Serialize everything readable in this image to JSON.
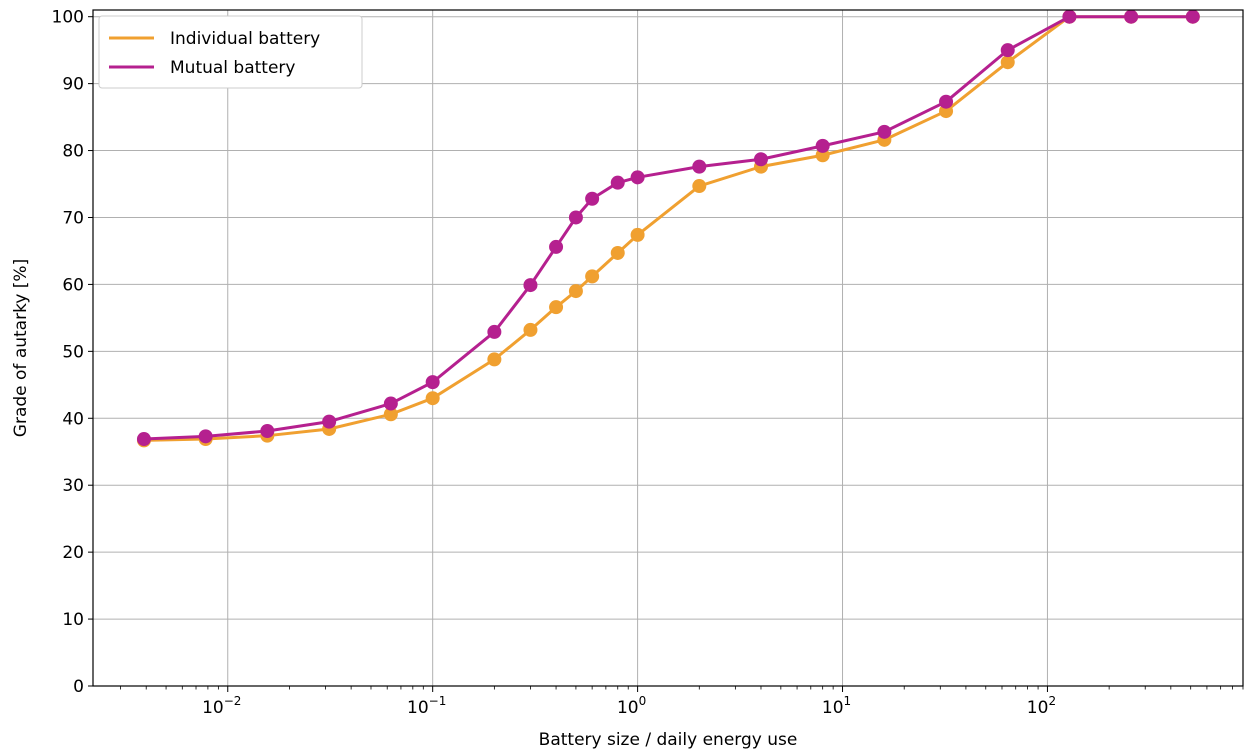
{
  "chart_data": {
    "type": "line",
    "xscale": "log",
    "xlim": [
      0.0022,
      900
    ],
    "ylim": [
      0,
      101
    ],
    "xlabel": "Battery size / daily energy use",
    "ylabel": "Grade of autarky [%]",
    "grid": true,
    "legend_position": "top-left",
    "x_ticks": [
      {
        "base": "10",
        "exp": "−2",
        "value": 0.01
      },
      {
        "base": "10",
        "exp": "−1",
        "value": 0.1
      },
      {
        "base": "10",
        "exp": "0",
        "value": 1
      },
      {
        "base": "10",
        "exp": "1",
        "value": 10
      },
      {
        "base": "10",
        "exp": "2",
        "value": 100
      }
    ],
    "y_ticks": [
      "0",
      "10",
      "20",
      "30",
      "40",
      "50",
      "60",
      "70",
      "80",
      "90",
      "100"
    ],
    "series": [
      {
        "name": "Individual battery",
        "color": "#F0A030",
        "x": [
          0.0039,
          0.0078,
          0.0156,
          0.03125,
          0.0625,
          0.1,
          0.2,
          0.3,
          0.4,
          0.5,
          0.6,
          0.8,
          1,
          2,
          4,
          8,
          16,
          32,
          64,
          128,
          256,
          512
        ],
        "y": [
          36.7,
          36.9,
          37.4,
          38.4,
          40.6,
          43.0,
          48.8,
          53.2,
          56.6,
          59.0,
          61.2,
          64.7,
          67.4,
          74.7,
          77.6,
          79.3,
          81.6,
          85.9,
          93.2,
          100,
          100,
          100
        ]
      },
      {
        "name": "Mutual battery",
        "color": "#B5208F",
        "x": [
          0.0039,
          0.0078,
          0.0156,
          0.03125,
          0.0625,
          0.1,
          0.2,
          0.3,
          0.4,
          0.5,
          0.6,
          0.8,
          1,
          2,
          4,
          8,
          16,
          32,
          64,
          128,
          256,
          512
        ],
        "y": [
          36.9,
          37.3,
          38.1,
          39.5,
          42.2,
          45.4,
          52.9,
          59.9,
          65.6,
          70.0,
          72.8,
          75.2,
          76.0,
          77.6,
          78.7,
          80.7,
          82.8,
          87.3,
          95.0,
          100,
          100,
          100
        ]
      }
    ]
  }
}
